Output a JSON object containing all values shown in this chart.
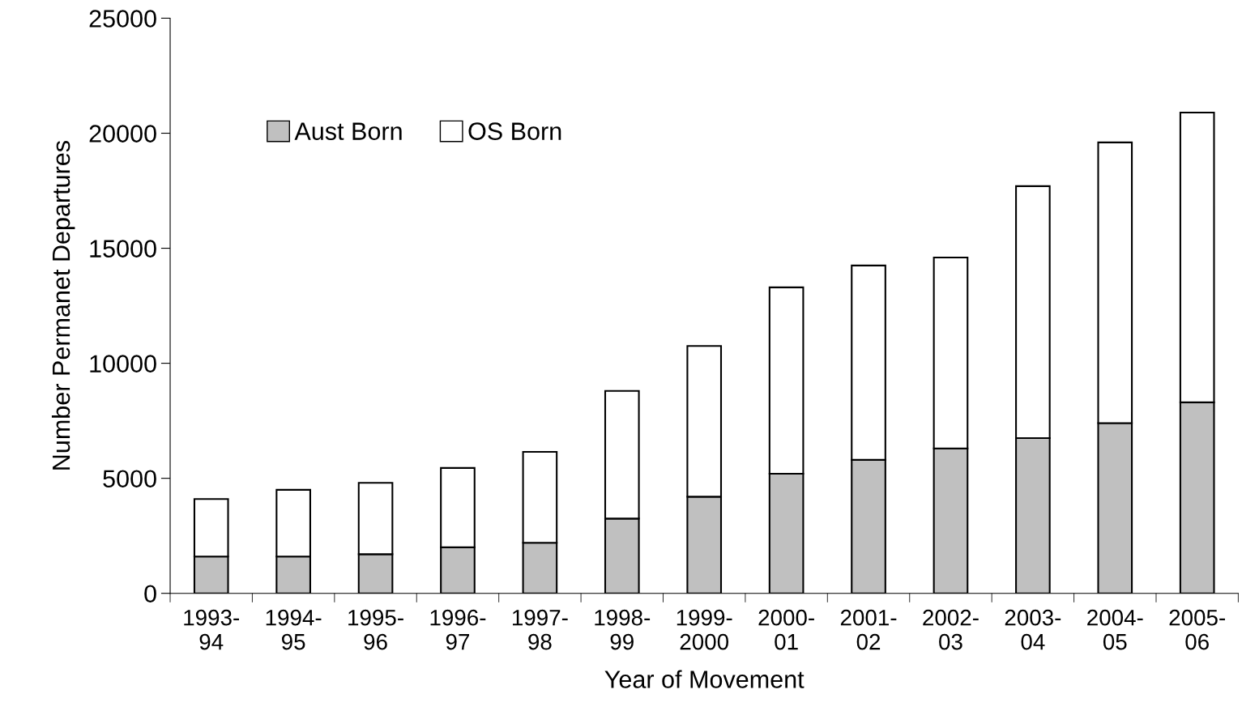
{
  "chart_data": {
    "type": "bar",
    "stacked": true,
    "xlabel": "Year of Movement",
    "ylabel": "Number Permanet Departures",
    "categories": [
      "1993-\n94",
      "1994-\n95",
      "1995-\n96",
      "1996-\n97",
      "1997-\n98",
      "1998-\n99",
      "1999-\n2000",
      "2000-\n01",
      "2001-\n02",
      "2002-\n03",
      "2003-\n04",
      "2004-\n05",
      "2005-\n06"
    ],
    "series": [
      {
        "name": "Aust Born",
        "color": "#c0c0c0",
        "values": [
          1600,
          1600,
          1700,
          2000,
          2200,
          3250,
          4200,
          5200,
          5800,
          6300,
          6750,
          7400,
          8300
        ]
      },
      {
        "name": "OS Born",
        "color": "#ffffff",
        "values": [
          2500,
          2900,
          3100,
          3450,
          3950,
          5550,
          6550,
          8100,
          8450,
          8300,
          10950,
          12200,
          12600
        ]
      }
    ],
    "ylim": [
      0,
      25000
    ],
    "yticks": [
      0,
      5000,
      10000,
      15000,
      20000,
      25000
    ],
    "grid": false,
    "legend": "top left"
  }
}
